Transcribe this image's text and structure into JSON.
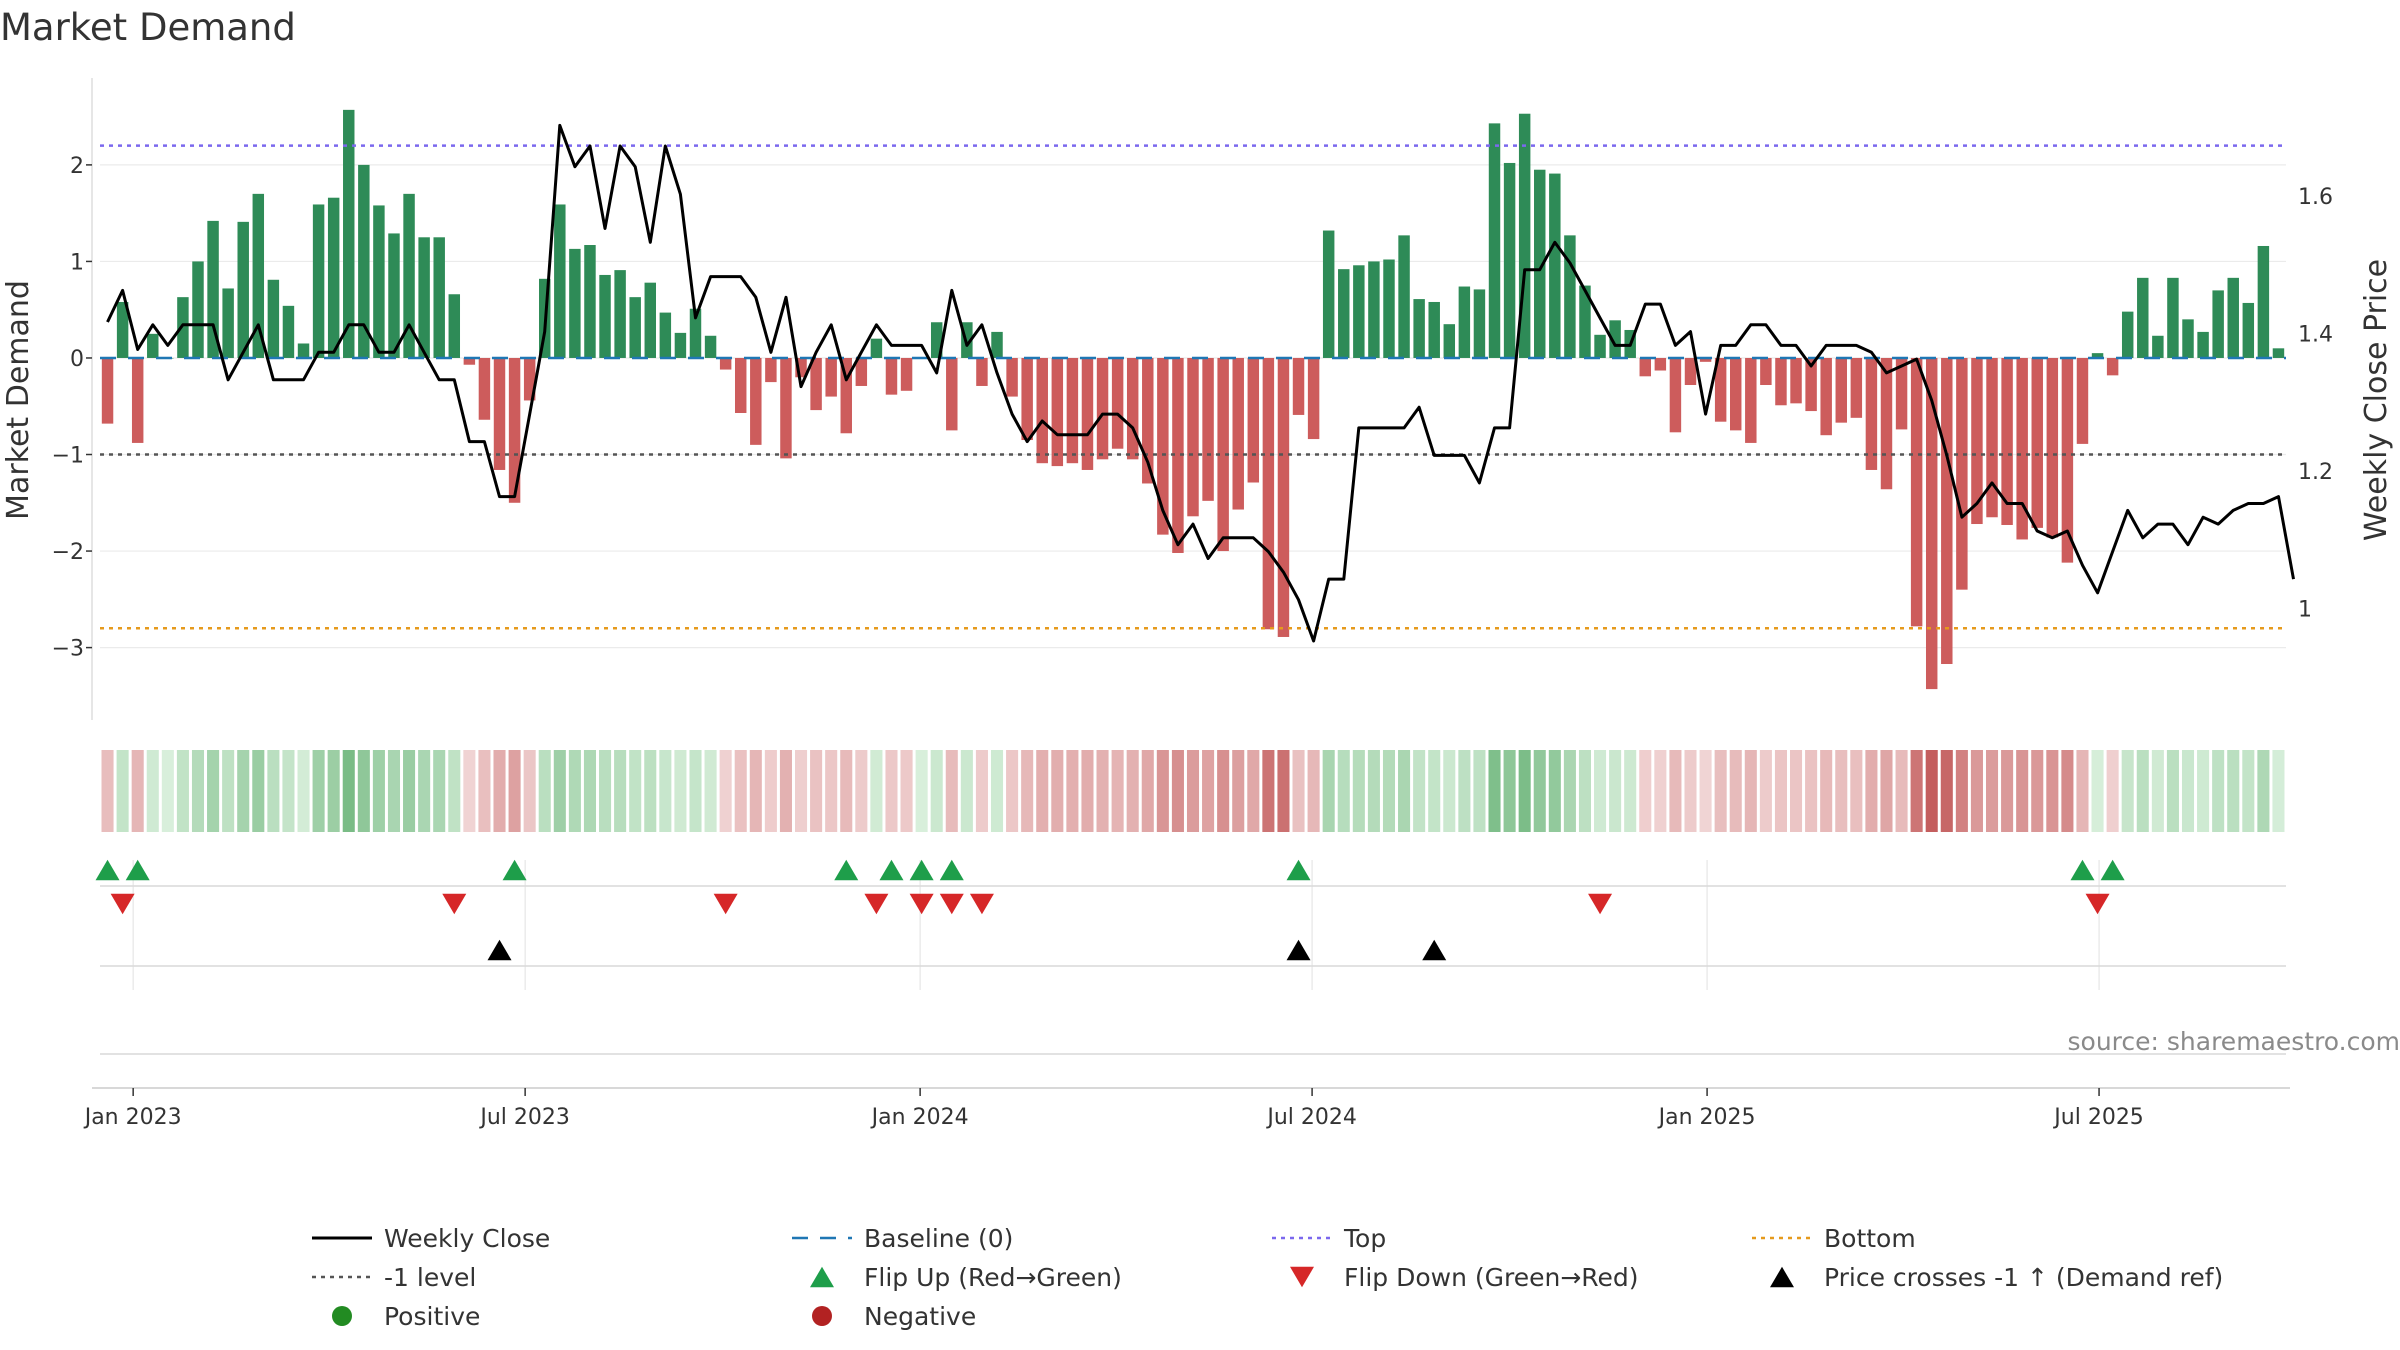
{
  "chart_data": {
    "type": "bar",
    "title": "Market Demand",
    "ylabel": "Market Demand",
    "y2label": "Weekly Close Price",
    "ylim": [
      -3.75,
      2.9
    ],
    "y2lim": [
      0.838,
      1.772
    ],
    "yticks": [
      2,
      1,
      0,
      -1,
      -2,
      -3
    ],
    "ytick_labels": [
      "2",
      "1",
      "0",
      "−1",
      "−2",
      "−3"
    ],
    "y2ticks": [
      1.6,
      1.4,
      1.2,
      1.0
    ],
    "y2tick_labels": [
      "1.6",
      "1.4",
      "1.2",
      "1"
    ],
    "xticks": [
      "Jan 2023",
      "Jul 2023",
      "Jan 2024",
      "Jul 2024",
      "Jan 2025",
      "Jul 2025"
    ],
    "xtick_weeks": [
      2.2,
      28.2,
      54.4,
      80.4,
      106.6,
      132.6
    ],
    "reference_lines": {
      "top": 2.2,
      "bottom": -2.8,
      "minus_one": -1,
      "baseline": 0
    },
    "series": [
      {
        "name": "Market Demand",
        "values": [
          -0.68,
          0.58,
          -0.88,
          0.25,
          0,
          0.63,
          1.0,
          1.42,
          0.72,
          1.41,
          1.7,
          0.81,
          0.54,
          0.15,
          1.59,
          1.66,
          2.57,
          2.0,
          1.58,
          1.29,
          1.7,
          1.25,
          1.25,
          0.66,
          -0.07,
          -0.64,
          -1.16,
          -1.5,
          -0.44,
          0.82,
          1.59,
          1.13,
          1.17,
          0.86,
          0.91,
          0.63,
          0.78,
          0.47,
          0.26,
          0.51,
          0.23,
          -0.12,
          -0.57,
          -0.9,
          -0.25,
          -1.04,
          -0.2,
          -0.54,
          -0.4,
          -0.78,
          -0.29,
          0.2,
          -0.38,
          -0.34,
          0.0,
          0.37,
          -0.75,
          0.37,
          -0.29,
          0.27,
          -0.4,
          -0.85,
          -1.09,
          -1.12,
          -1.09,
          -1.16,
          -1.05,
          -0.94,
          -1.05,
          -1.3,
          -1.83,
          -2.02,
          -1.64,
          -1.48,
          -2.0,
          -1.57,
          -1.29,
          -2.81,
          -2.89,
          -0.59,
          -0.84,
          1.32,
          0.92,
          0.96,
          1.0,
          1.02,
          1.27,
          0.61,
          0.58,
          0.35,
          0.74,
          0.71,
          2.43,
          2.02,
          2.53,
          1.95,
          1.91,
          1.27,
          0.75,
          0.24,
          0.39,
          0.29,
          -0.19,
          -0.13,
          -0.77,
          -0.28,
          -0.04,
          -0.66,
          -0.75,
          -0.88,
          -0.28,
          -0.49,
          -0.47,
          -0.55,
          -0.8,
          -0.67,
          -0.62,
          -1.16,
          -1.36,
          -0.74,
          -2.78,
          -3.43,
          -3.17,
          -2.4,
          -1.72,
          -1.65,
          -1.73,
          -1.88,
          -1.76,
          -1.86,
          -2.12,
          -0.89,
          0.05,
          -0.18,
          0.48,
          0.83,
          0.23,
          0.83,
          0.4,
          0.27,
          0.7,
          0.83,
          0.57,
          1.16,
          0.1
        ]
      },
      {
        "name": "Weekly Close",
        "axis": "right",
        "values": [
          1.417,
          1.463,
          1.377,
          1.413,
          1.383,
          1.413,
          1.413,
          1.413,
          1.333,
          1.373,
          1.413,
          1.333,
          1.333,
          1.333,
          1.373,
          1.373,
          1.413,
          1.413,
          1.373,
          1.373,
          1.413,
          1.373,
          1.333,
          1.333,
          1.243,
          1.243,
          1.163,
          1.163,
          1.283,
          1.403,
          1.703,
          1.643,
          1.673,
          1.553,
          1.673,
          1.643,
          1.533,
          1.673,
          1.603,
          1.423,
          1.483,
          1.483,
          1.483,
          1.453,
          1.373,
          1.453,
          1.323,
          1.373,
          1.413,
          1.333,
          1.373,
          1.413,
          1.383,
          1.383,
          1.383,
          1.343,
          1.463,
          1.383,
          1.413,
          1.343,
          1.283,
          1.243,
          1.273,
          1.253,
          1.253,
          1.253,
          1.283,
          1.283,
          1.263,
          1.213,
          1.143,
          1.093,
          1.123,
          1.073,
          1.103,
          1.103,
          1.103,
          1.083,
          1.053,
          1.013,
          0.953,
          1.043,
          1.043,
          1.263,
          1.263,
          1.263,
          1.263,
          1.293,
          1.223,
          1.223,
          1.223,
          1.183,
          1.263,
          1.263,
          1.493,
          1.493,
          1.533,
          1.503,
          1.463,
          1.423,
          1.383,
          1.383,
          1.443,
          1.443,
          1.383,
          1.403,
          1.283,
          1.383,
          1.383,
          1.413,
          1.413,
          1.383,
          1.383,
          1.353,
          1.383,
          1.383,
          1.383,
          1.373,
          1.343,
          1.353,
          1.363,
          1.303,
          1.223,
          1.133,
          1.153,
          1.183,
          1.153,
          1.153,
          1.113,
          1.103,
          1.113,
          1.063,
          1.023,
          1.083,
          1.143,
          1.103,
          1.123,
          1.123,
          1.093,
          1.133,
          1.123,
          1.143,
          1.153,
          1.153,
          1.163,
          1.043
        ]
      }
    ],
    "flip_up_weeks": [
      0.5,
      2.5,
      27.5,
      49.5,
      52.5,
      54.5,
      56.5,
      79.5,
      131.5,
      133.5
    ],
    "flip_down_weeks": [
      1.5,
      23.5,
      41.5,
      51.5,
      54.5,
      56.5,
      58.5,
      99.5,
      132.5
    ],
    "price_cross_weeks": [
      26.5,
      79.5,
      88.5
    ],
    "source_text": "source: sharemaestro.com",
    "colors": {
      "positive": "#2e8b57",
      "negative": "#cd5c5c",
      "price_line": "#000000",
      "baseline": "#1f77b4",
      "top": "#7b68ee",
      "bottom": "#e69a1c",
      "minus_one": "#555555",
      "flip_up": "#1e9e4a",
      "flip_down": "#d62728",
      "cross": "#000000"
    },
    "legend": [
      {
        "label": "Weekly Close",
        "kind": "line",
        "color": "#000000"
      },
      {
        "label": "Baseline (0)",
        "kind": "dash",
        "color": "#1f77b4"
      },
      {
        "label": "Top",
        "kind": "dot",
        "color": "#7b68ee"
      },
      {
        "label": "Bottom",
        "kind": "dot",
        "color": "#e69a1c"
      },
      {
        "label": "-1 level",
        "kind": "dot",
        "color": "#555555"
      },
      {
        "label": "Flip Up (Red→Green)",
        "kind": "tri-up",
        "color": "#1e9e4a"
      },
      {
        "label": "Flip Down (Green→Red)",
        "kind": "tri-down",
        "color": "#d62728"
      },
      {
        "label": "Price crosses -1 ↑ (Demand ref)",
        "kind": "tri-up",
        "color": "#000000"
      },
      {
        "label": "Positive",
        "kind": "circle",
        "color": "#228b22"
      },
      {
        "label": "Negative",
        "kind": "circle",
        "color": "#b22222"
      }
    ]
  }
}
